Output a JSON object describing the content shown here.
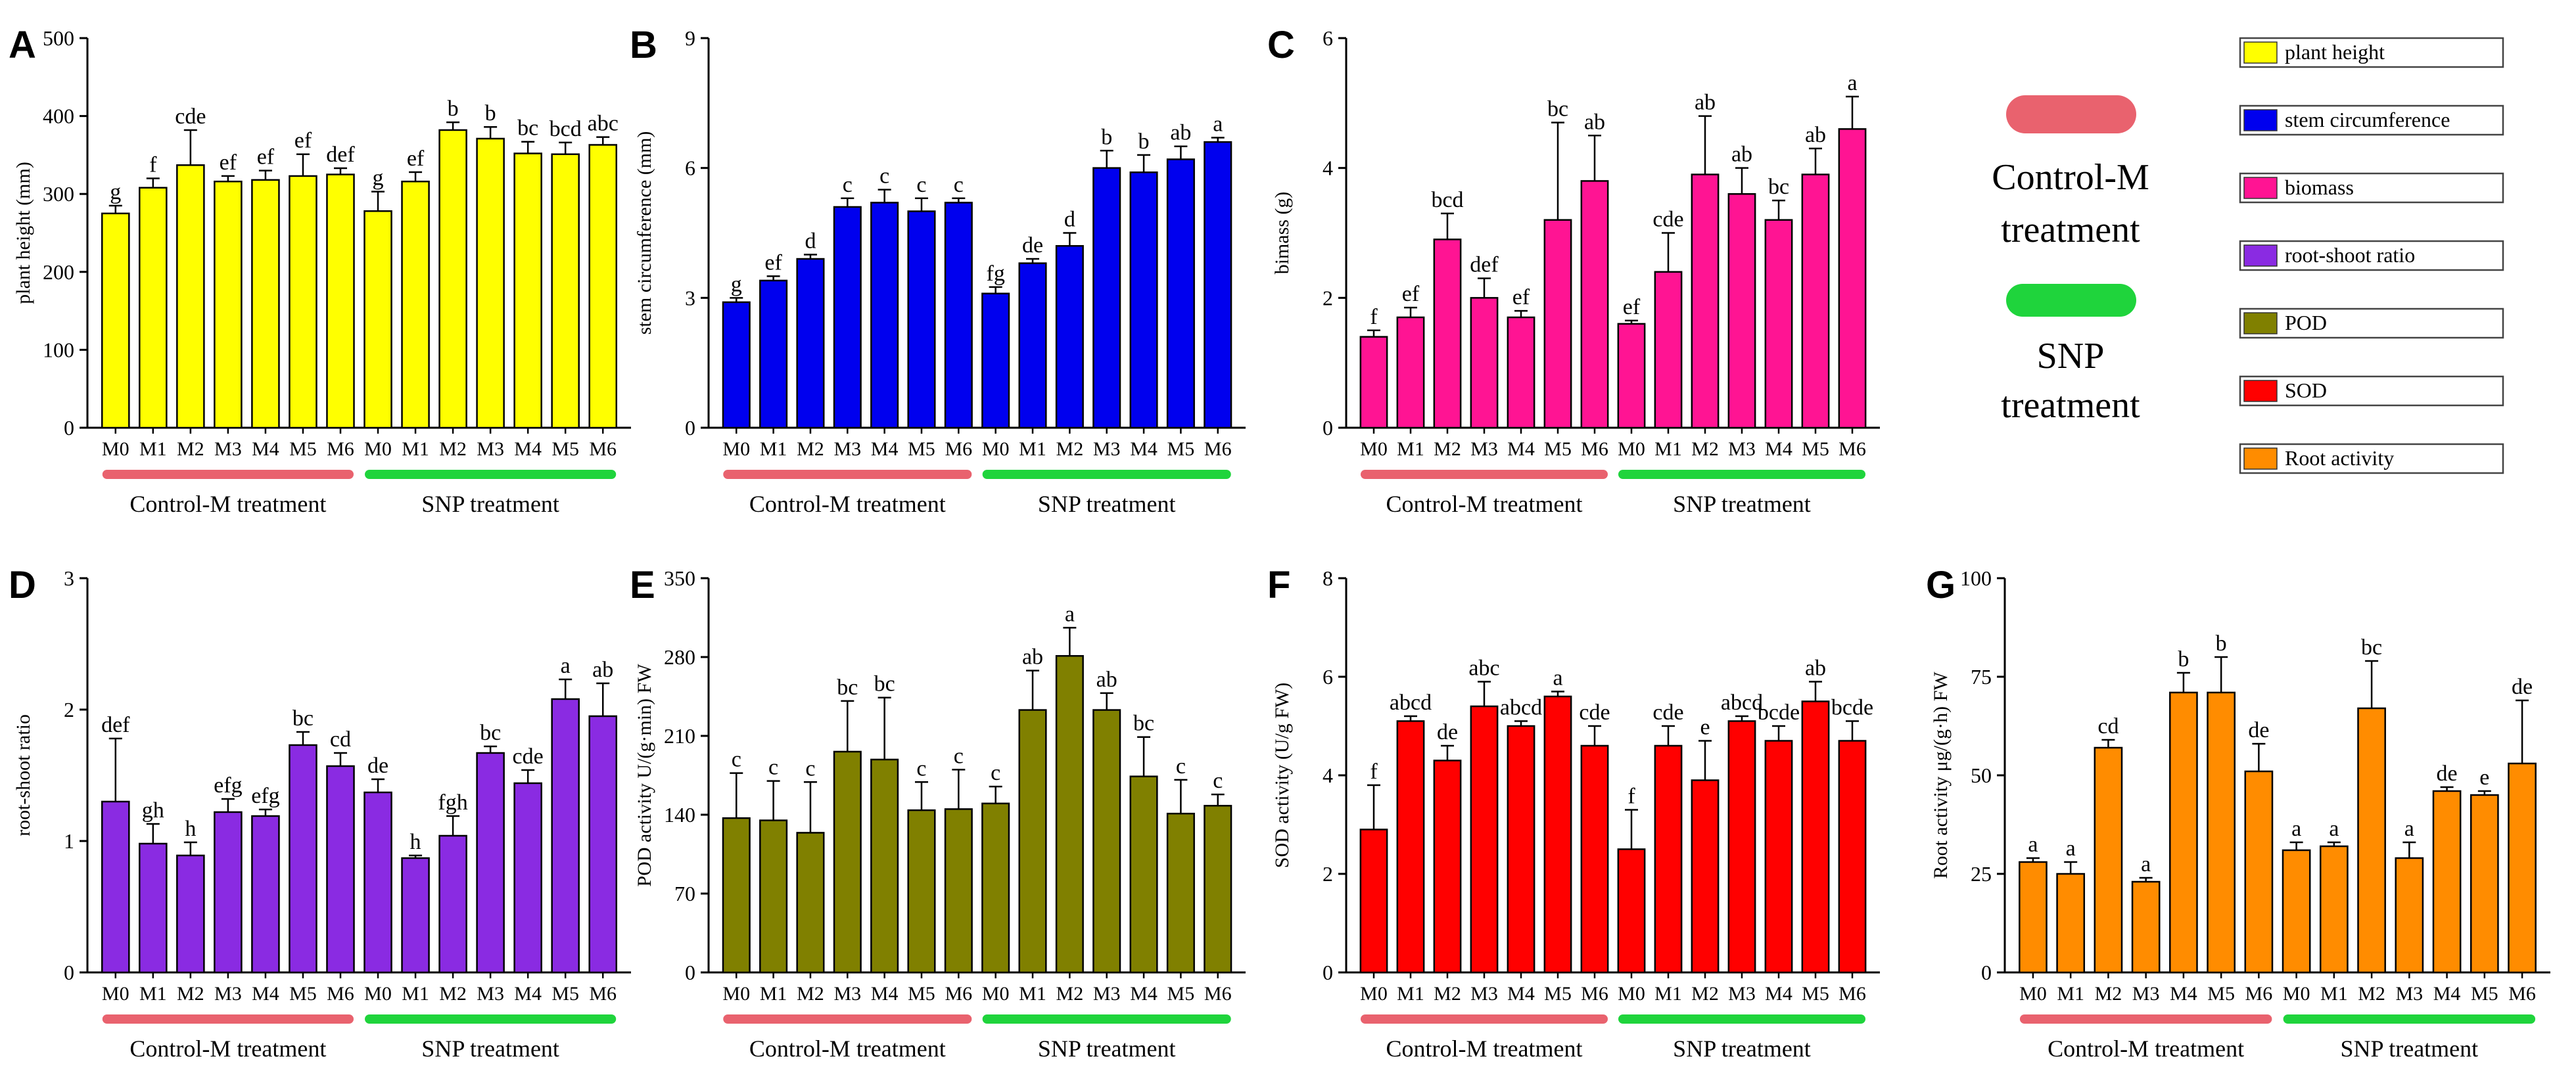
{
  "figure": {
    "group_labels": {
      "control": "Control-M treatment",
      "snp": "SNP treatment"
    },
    "colors": {
      "control_bar": "#e9626e",
      "snp_bar": "#1fd43c"
    },
    "side_legend": {
      "entries": [
        {
          "label": "plant height",
          "color": "#ffff00"
        },
        {
          "label": "stem circumference",
          "color": "#0000ee"
        },
        {
          "label": "biomass",
          "color": "#ff1493"
        },
        {
          "label": "root-shoot ratio",
          "color": "#8a2be2"
        },
        {
          "label": "POD",
          "color": "#808000"
        },
        {
          "label": "SOD",
          "color": "#ff0000"
        },
        {
          "label": "Root activity",
          "color": "#ff8c00"
        }
      ],
      "control_text": [
        "Control-M",
        "treatment"
      ],
      "snp_text": [
        "SNP",
        "treatment"
      ]
    }
  },
  "chart_data": [
    {
      "panel": "A",
      "type": "bar",
      "title": "",
      "ylabel": "plant height (mm)",
      "xlabel": "",
      "ylim": [
        0,
        500
      ],
      "yticks": [
        0,
        100,
        200,
        300,
        400,
        500
      ],
      "color": "#ffff00",
      "categories": [
        "M0",
        "M1",
        "M2",
        "M3",
        "M4",
        "M5",
        "M6",
        "M0",
        "M1",
        "M2",
        "M3",
        "M4",
        "M5",
        "M6"
      ],
      "values": [
        275,
        308,
        337,
        316,
        318,
        323,
        325,
        278,
        316,
        382,
        371,
        352,
        351,
        363
      ],
      "errors": [
        10,
        12,
        45,
        7,
        12,
        28,
        8,
        25,
        12,
        10,
        15,
        15,
        15,
        10
      ],
      "letters": [
        "g",
        "f",
        "cde",
        "ef",
        "ef",
        "ef",
        "def",
        "g",
        "ef",
        "b",
        "b",
        "bc",
        "bcd",
        "abc"
      ]
    },
    {
      "panel": "B",
      "type": "bar",
      "title": "",
      "ylabel": "stem circumference (mm)",
      "xlabel": "",
      "ylim": [
        0,
        9
      ],
      "yticks": [
        0,
        3,
        6,
        9
      ],
      "color": "#0000ee",
      "categories": [
        "M0",
        "M1",
        "M2",
        "M3",
        "M4",
        "M5",
        "M6",
        "M0",
        "M1",
        "M2",
        "M3",
        "M4",
        "M5",
        "M6"
      ],
      "values": [
        2.9,
        3.4,
        3.9,
        5.1,
        5.2,
        5.0,
        5.2,
        3.1,
        3.8,
        4.2,
        6.0,
        5.9,
        6.2,
        6.6
      ],
      "errors": [
        0.1,
        0.1,
        0.1,
        0.2,
        0.3,
        0.3,
        0.1,
        0.15,
        0.1,
        0.3,
        0.4,
        0.4,
        0.3,
        0.1
      ],
      "letters": [
        "g",
        "ef",
        "d",
        "c",
        "c",
        "c",
        "c",
        "fg",
        "de",
        "d",
        "b",
        "b",
        "ab",
        "a"
      ]
    },
    {
      "panel": "C",
      "type": "bar",
      "title": "",
      "ylabel": "bimass (g)",
      "xlabel": "",
      "ylim": [
        0,
        6
      ],
      "yticks": [
        0,
        2,
        4,
        6
      ],
      "color": "#ff1493",
      "categories": [
        "M0",
        "M1",
        "M2",
        "M3",
        "M4",
        "M5",
        "M6",
        "M0",
        "M1",
        "M2",
        "M3",
        "M4",
        "M5",
        "M6"
      ],
      "values": [
        1.4,
        1.7,
        2.9,
        2.0,
        1.7,
        3.2,
        3.8,
        1.6,
        2.4,
        3.9,
        3.6,
        3.2,
        3.9,
        4.6
      ],
      "errors": [
        0.1,
        0.15,
        0.4,
        0.3,
        0.1,
        1.5,
        0.7,
        0.05,
        0.6,
        0.9,
        0.4,
        0.3,
        0.4,
        0.5
      ],
      "letters": [
        "f",
        "ef",
        "bcd",
        "def",
        "ef",
        "bc",
        "ab",
        "ef",
        "cde",
        "ab",
        "ab",
        "bc",
        "ab",
        "a"
      ]
    },
    {
      "panel": "D",
      "type": "bar",
      "title": "",
      "ylabel": "root-shoot ratio",
      "xlabel": "",
      "ylim": [
        0,
        3
      ],
      "yticks": [
        0,
        1,
        2,
        3
      ],
      "color": "#8a2be2",
      "categories": [
        "M0",
        "M1",
        "M2",
        "M3",
        "M4",
        "M5",
        "M6",
        "M0",
        "M1",
        "M2",
        "M3",
        "M4",
        "M5",
        "M6"
      ],
      "values": [
        1.3,
        0.98,
        0.89,
        1.22,
        1.19,
        1.73,
        1.57,
        1.37,
        0.87,
        1.04,
        1.67,
        1.44,
        2.08,
        1.95
      ],
      "errors": [
        0.48,
        0.15,
        0.1,
        0.1,
        0.05,
        0.1,
        0.1,
        0.1,
        0.02,
        0.15,
        0.05,
        0.1,
        0.15,
        0.25
      ],
      "letters": [
        "def",
        "gh",
        "h",
        "efg",
        "efg",
        "bc",
        "cd",
        "de",
        "h",
        "fgh",
        "bc",
        "cde",
        "a",
        "ab"
      ]
    },
    {
      "panel": "E",
      "type": "bar",
      "title": "",
      "ylabel": "POD activity U/(g·min) FW",
      "xlabel": "",
      "ylim": [
        0,
        350
      ],
      "yticks": [
        0,
        70,
        140,
        210,
        280,
        350
      ],
      "color": "#808000",
      "categories": [
        "M0",
        "M1",
        "M2",
        "M3",
        "M4",
        "M5",
        "M6",
        "M0",
        "M1",
        "M2",
        "M3",
        "M4",
        "M5",
        "M6"
      ],
      "values": [
        137,
        135,
        124,
        196,
        189,
        144,
        145,
        150,
        233,
        281,
        233,
        174,
        141,
        148
      ],
      "errors": [
        40,
        35,
        45,
        45,
        55,
        25,
        35,
        15,
        35,
        25,
        15,
        35,
        30,
        10
      ],
      "letters": [
        "c",
        "c",
        "c",
        "bc",
        "bc",
        "c",
        "c",
        "c",
        "ab",
        "a",
        "ab",
        "bc",
        "c",
        "c"
      ]
    },
    {
      "panel": "F",
      "type": "bar",
      "title": "",
      "ylabel": "SOD activity (U/g FW)",
      "xlabel": "",
      "ylim": [
        0,
        8
      ],
      "yticks": [
        0,
        2,
        4,
        6,
        8
      ],
      "color": "#ff0000",
      "categories": [
        "M0",
        "M1",
        "M2",
        "M3",
        "M4",
        "M5",
        "M6",
        "M0",
        "M1",
        "M2",
        "M3",
        "M4",
        "M5",
        "M6"
      ],
      "values": [
        2.9,
        5.1,
        4.3,
        5.4,
        5.0,
        5.6,
        4.6,
        2.5,
        4.6,
        3.9,
        5.1,
        4.7,
        5.5,
        4.7
      ],
      "errors": [
        0.9,
        0.1,
        0.3,
        0.5,
        0.1,
        0.1,
        0.4,
        0.8,
        0.4,
        0.8,
        0.1,
        0.3,
        0.4,
        0.4
      ],
      "letters": [
        "f",
        "abcd",
        "de",
        "abc",
        "abcd",
        "a",
        "cde",
        "f",
        "cde",
        "e",
        "abcd",
        "bcde",
        "ab",
        "bcde"
      ]
    },
    {
      "panel": "G",
      "type": "bar",
      "title": "",
      "ylabel": "Root activity μg/(g·h) FW",
      "xlabel": "",
      "ylim": [
        0,
        100
      ],
      "yticks": [
        0,
        25,
        50,
        75,
        100
      ],
      "color": "#ff8c00",
      "categories": [
        "M0",
        "M1",
        "M2",
        "M3",
        "M4",
        "M5",
        "M6",
        "M0",
        "M1",
        "M2",
        "M3",
        "M4",
        "M5",
        "M6"
      ],
      "values": [
        28,
        25,
        57,
        23,
        71,
        71,
        51,
        31,
        32,
        67,
        29,
        46,
        45,
        53
      ],
      "errors": [
        1,
        3,
        2,
        1,
        5,
        9,
        7,
        2,
        1,
        12,
        4,
        1,
        1,
        16
      ],
      "letters": [
        "a",
        "a",
        "cd",
        "a",
        "b",
        "b",
        "de",
        "a",
        "a",
        "bc",
        "a",
        "de",
        "e",
        "de"
      ]
    }
  ]
}
